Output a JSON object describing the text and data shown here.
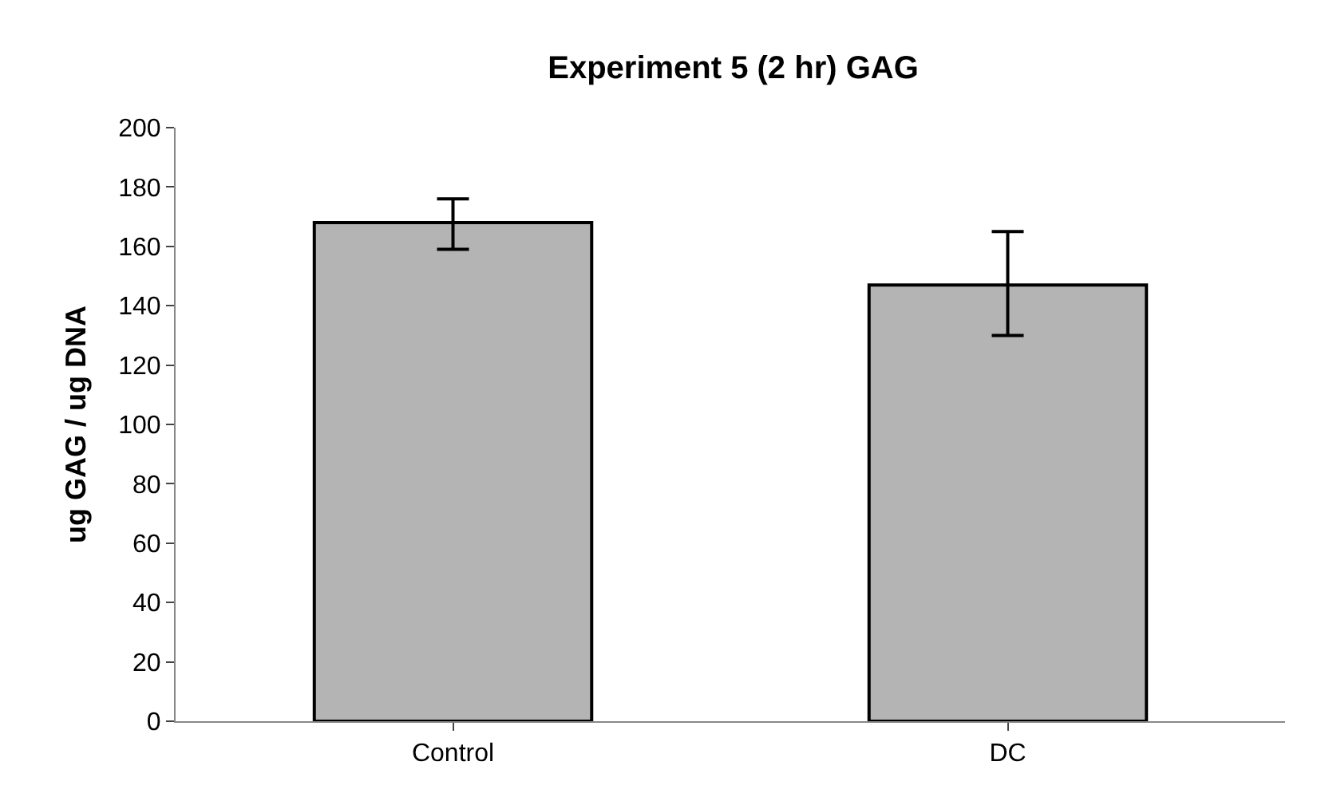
{
  "chart_data": {
    "type": "bar",
    "title": "Experiment 5 (2 hr) GAG",
    "ylabel": "ug GAG / ug DNA",
    "categories": [
      "Control",
      "DC"
    ],
    "values": [
      168,
      147
    ],
    "errors": [
      [
        159,
        176
      ],
      [
        130,
        165
      ]
    ],
    "color": "#b4b4b4",
    "ylim": [
      0,
      200
    ],
    "yticks": [
      0,
      20,
      40,
      60,
      80,
      100,
      120,
      140,
      160,
      180,
      200
    ]
  }
}
